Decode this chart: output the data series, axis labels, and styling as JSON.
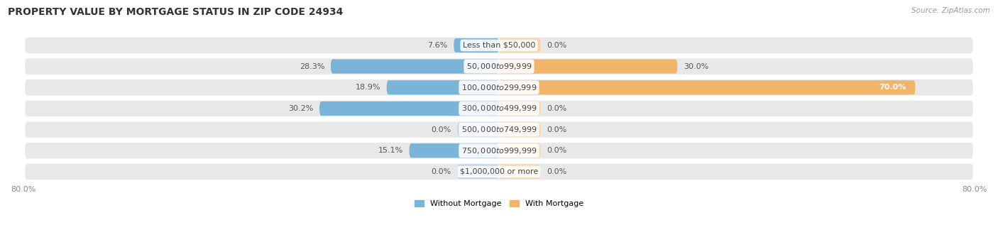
{
  "title": "PROPERTY VALUE BY MORTGAGE STATUS IN ZIP CODE 24934",
  "source": "Source: ZipAtlas.com",
  "categories": [
    "Less than $50,000",
    "$50,000 to $99,999",
    "$100,000 to $299,999",
    "$300,000 to $499,999",
    "$500,000 to $749,999",
    "$750,000 to $999,999",
    "$1,000,000 or more"
  ],
  "without_mortgage": [
    7.6,
    28.3,
    18.9,
    30.2,
    0.0,
    15.1,
    0.0
  ],
  "with_mortgage": [
    0.0,
    30.0,
    70.0,
    0.0,
    0.0,
    0.0,
    0.0
  ],
  "blue_color": "#7ab4d8",
  "orange_color": "#f0b46a",
  "blue_light": "#b8d4ea",
  "orange_light": "#f5d4a8",
  "bg_row_color": "#e8e8e8",
  "axis_max": 80.0,
  "stub_size": 7.0,
  "legend_without": "Without Mortgage",
  "legend_with": "With Mortgage",
  "title_fontsize": 10,
  "source_fontsize": 7.5,
  "label_fontsize": 8,
  "cat_fontsize": 8
}
